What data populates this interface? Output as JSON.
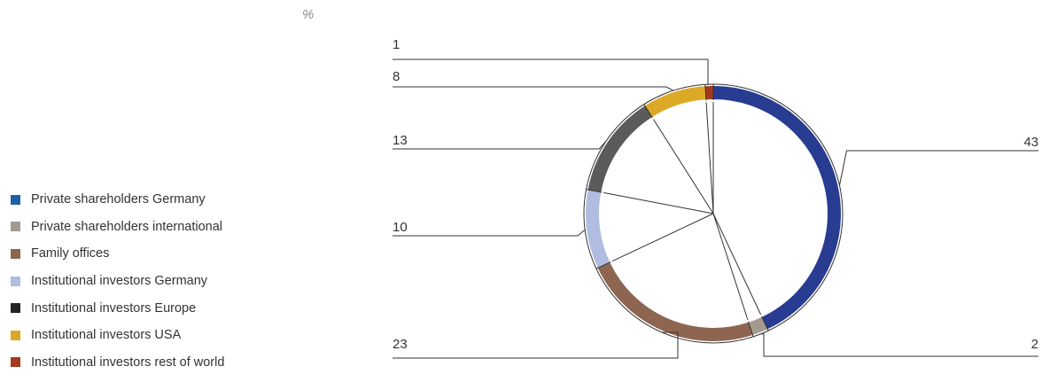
{
  "chart_data": {
    "type": "pie",
    "unit_label": "%",
    "categories": [
      "Private shareholders Germany",
      "Private shareholders international",
      "Family offices",
      "Institutional investors Germany",
      "Institutional investors Europe",
      "Institutional investors USA",
      "Institutional investors rest of world"
    ],
    "legend_colors": [
      "#1f5fa8",
      "#a49a8f",
      "#8e6550",
      "#b0bde0",
      "#222222",
      "#dca926",
      "#a33a1d"
    ],
    "slices": [
      {
        "value": 43,
        "label": "43",
        "color": "#283c91"
      },
      {
        "value": 2,
        "label": "2",
        "color": "#a49a8f"
      },
      {
        "value": 23,
        "label": "23",
        "color": "#8e6550"
      },
      {
        "value": 10,
        "label": "10",
        "color": "#b0bde0"
      },
      {
        "value": 13,
        "label": "13",
        "color": "#5b5b5b"
      },
      {
        "value": 8,
        "label": "8",
        "color": "#dca926"
      },
      {
        "value": 1,
        "label": "1",
        "color": "#a33a1d"
      }
    ],
    "legend_position": "left"
  }
}
